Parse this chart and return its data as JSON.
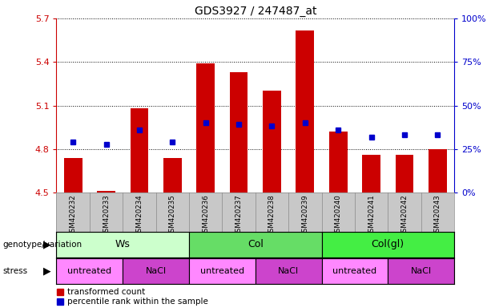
{
  "title": "GDS3927 / 247487_at",
  "samples": [
    "GSM420232",
    "GSM420233",
    "GSM420234",
    "GSM420235",
    "GSM420236",
    "GSM420237",
    "GSM420238",
    "GSM420239",
    "GSM420240",
    "GSM420241",
    "GSM420242",
    "GSM420243"
  ],
  "bar_bottoms": [
    4.5,
    4.5,
    4.5,
    4.5,
    4.5,
    4.5,
    4.5,
    4.5,
    4.5,
    4.5,
    4.5,
    4.5
  ],
  "bar_tops": [
    4.74,
    4.51,
    5.08,
    4.74,
    5.39,
    5.33,
    5.2,
    5.62,
    4.92,
    4.76,
    4.76,
    4.8
  ],
  "percentile_values": [
    4.85,
    4.83,
    4.93,
    4.85,
    4.98,
    4.97,
    4.96,
    4.98,
    4.93,
    4.88,
    4.9,
    4.9
  ],
  "ylim_left": [
    4.5,
    5.7
  ],
  "yticks_left": [
    4.5,
    4.8,
    5.1,
    5.4,
    5.7
  ],
  "yticks_right": [
    0,
    25,
    50,
    75,
    100
  ],
  "bar_color": "#cc0000",
  "percentile_color": "#0000cc",
  "bg_color": "#ffffff",
  "plot_bg": "#ffffff",
  "left_axis_color": "#cc0000",
  "right_axis_color": "#0000cc",
  "sample_bg_color": "#c8c8c8",
  "genotype_groups": [
    {
      "label": "Ws",
      "start": 0,
      "end": 4,
      "color": "#ccffcc"
    },
    {
      "label": "Col",
      "start": 4,
      "end": 8,
      "color": "#66dd66"
    },
    {
      "label": "Col(gl)",
      "start": 8,
      "end": 12,
      "color": "#44ee44"
    }
  ],
  "stress_groups": [
    {
      "label": "untreated",
      "start": 0,
      "end": 2,
      "color": "#ff88ff"
    },
    {
      "label": "NaCl",
      "start": 2,
      "end": 4,
      "color": "#cc44cc"
    },
    {
      "label": "untreated",
      "start": 4,
      "end": 6,
      "color": "#ff88ff"
    },
    {
      "label": "NaCl",
      "start": 6,
      "end": 8,
      "color": "#cc44cc"
    },
    {
      "label": "untreated",
      "start": 8,
      "end": 10,
      "color": "#ff88ff"
    },
    {
      "label": "NaCl",
      "start": 10,
      "end": 12,
      "color": "#cc44cc"
    }
  ],
  "legend_items": [
    {
      "color": "#cc0000",
      "label": "transformed count"
    },
    {
      "color": "#0000cc",
      "label": "percentile rank within the sample"
    }
  ]
}
